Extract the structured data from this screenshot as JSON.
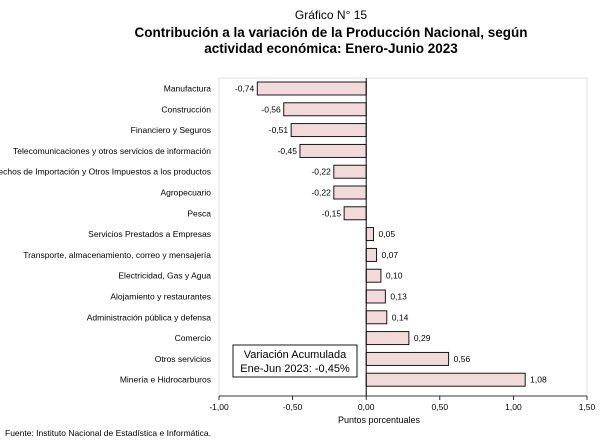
{
  "header": {
    "figure_number": "Gráfico N° 15",
    "title_line1": "Contribución a la variación de la Producción Nacional, según",
    "title_line2": "actividad económica: Enero-Junio 2023"
  },
  "chart_data": {
    "type": "bar",
    "orientation": "horizontal",
    "categories": [
      "Manufactura",
      "Construcción",
      "Financiero y Seguros",
      "Telecomunicaciones y otros servicios de información",
      "Derechos de Importación y Otros Impuestos a los productos",
      "Agropecuario",
      "Pesca",
      "Servicios Prestados a Empresas",
      "Transporte, almacenamiento, correo y mensajería",
      "Electricidad, Gas y Agua",
      "Alojamiento y restaurantes",
      "Administración pública y defensa",
      "Comercio",
      "Otros servicios",
      "Minería e Hidrocarburos"
    ],
    "values": [
      -0.74,
      -0.56,
      -0.51,
      -0.45,
      -0.22,
      -0.22,
      -0.15,
      0.05,
      0.07,
      0.1,
      0.13,
      0.14,
      0.29,
      0.56,
      1.08
    ],
    "value_labels": [
      "-0,74",
      "-0,56",
      "-0,51",
      "-0,45",
      "-0,22",
      "-0,22",
      "-0,15",
      "0,05",
      "0,07",
      "0,10",
      "0,13",
      "0,14",
      "0,29",
      "0,56",
      "1,08"
    ],
    "xlim": [
      -1.0,
      1.5
    ],
    "xticks": [
      -1.0,
      -0.5,
      0.0,
      0.5,
      1.0,
      1.5
    ],
    "xtick_labels": [
      "-1,00",
      "-0,50",
      "0,00",
      "0,50",
      "1,00",
      "1,50"
    ],
    "xlabel": "Puntos porcentuales",
    "annotation_line1": "Variación Acumulada",
    "annotation_line2": "Ene-Jun 2023: -0,45%",
    "bar_color": "#f2d9da",
    "bar_edge_color": "#000000"
  },
  "footer": {
    "source": "Fuente: Instituto Nacional de Estadística e Informática."
  }
}
